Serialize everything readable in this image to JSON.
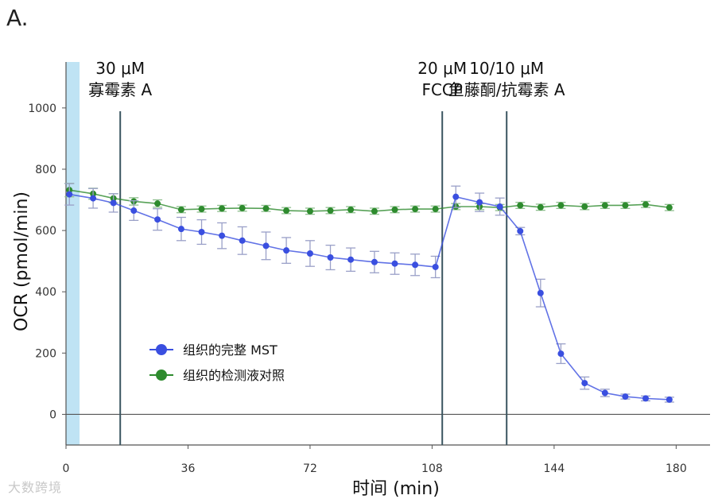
{
  "panel_label": "A.",
  "watermark": "大数跨境",
  "colors": {
    "intact": "#3a4fe0",
    "control": "#2e8b2e",
    "injection_line": "#3a5560",
    "axis": "#555555",
    "baseline_band": "#bfe3f4",
    "error_bar": "#9aa0c8"
  },
  "chart_data": {
    "type": "line",
    "xlabel": "时间 (min)",
    "ylabel": "OCR (pmol/min)",
    "xlim": [
      0,
      190
    ],
    "ylim": [
      -100,
      1150
    ],
    "xticks": [
      0,
      36,
      72,
      108,
      144,
      180
    ],
    "yticks": [
      0,
      200,
      400,
      600,
      800,
      1000
    ],
    "baseline_band": [
      0,
      4
    ],
    "legend_position": "center-left",
    "injections": [
      {
        "x": 16,
        "line1": "30 μM",
        "line2": "寡霉素 A"
      },
      {
        "x": 111,
        "line1": "20 μM",
        "line2": "FCCP"
      },
      {
        "x": 130,
        "line1": "10/10 μM",
        "line2": "鱼藤酮/抗霉素 A"
      }
    ],
    "series": [
      {
        "name": "组织的完整 MST",
        "color": "#3a4fe0",
        "x": [
          1,
          8,
          14,
          20,
          27,
          34,
          40,
          46,
          52,
          59,
          65,
          72,
          78,
          84,
          91,
          97,
          103,
          109,
          115,
          122,
          128,
          134,
          140,
          146,
          153,
          159,
          165,
          171,
          178
        ],
        "y": [
          718,
          705,
          690,
          665,
          636,
          605,
          595,
          583,
          567,
          550,
          535,
          525,
          512,
          505,
          497,
          492,
          488,
          481,
          710,
          692,
          678,
          598,
          396,
          198,
          102,
          70,
          58,
          52,
          48
        ],
        "err": [
          35,
          32,
          30,
          32,
          35,
          38,
          40,
          42,
          45,
          45,
          42,
          42,
          40,
          38,
          35,
          35,
          35,
          35,
          35,
          30,
          28,
          12,
          45,
          32,
          20,
          12,
          8,
          8,
          8
        ]
      },
      {
        "name": "组织的检测液对照",
        "color": "#2e8b2e",
        "x": [
          1,
          8,
          14,
          20,
          27,
          34,
          40,
          46,
          52,
          59,
          65,
          72,
          78,
          84,
          91,
          97,
          103,
          109,
          115,
          122,
          128,
          134,
          140,
          146,
          153,
          159,
          165,
          171,
          178
        ],
        "y": [
          732,
          720,
          705,
          695,
          688,
          668,
          670,
          672,
          673,
          672,
          665,
          663,
          665,
          668,
          663,
          668,
          670,
          670,
          678,
          678,
          675,
          682,
          676,
          682,
          678,
          682,
          682,
          685,
          675
        ],
        "err": [
          22,
          18,
          15,
          12,
          12,
          10,
          10,
          10,
          10,
          10,
          10,
          10,
          10,
          10,
          10,
          10,
          10,
          10,
          10,
          10,
          10,
          10,
          10,
          10,
          10,
          10,
          10,
          10,
          10
        ]
      }
    ]
  }
}
